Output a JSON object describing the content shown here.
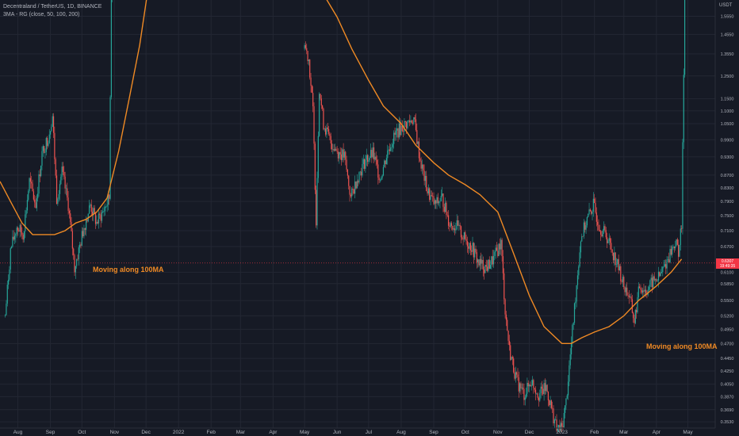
{
  "header": {
    "symbol_line": "Decentraland / TetherUS, 1D, BINANCE",
    "indicator_line": "3MA - RG (close, 50, 100, 200)"
  },
  "annotations": {
    "left": "Moving along 100MA",
    "right": "Moving along 100MA"
  },
  "price_axis": {
    "currency": "USDT",
    "labels": [
      "1.5550",
      "1.4550",
      "1.3550",
      "1.2500",
      "1.1500",
      "1.1000",
      "1.0500",
      "0.9900",
      "0.9300",
      "0.8700",
      "0.8300",
      "0.7900",
      "0.7500",
      "0.7100",
      "0.6700",
      "0.6100",
      "0.5850",
      "0.5500",
      "0.5200",
      "0.4950",
      "0.4700",
      "0.4450",
      "0.4250",
      "0.4050",
      "0.3870",
      "0.3690",
      "0.3530"
    ],
    "current_price": "0.6307",
    "countdown": "19:49:35"
  },
  "colors": {
    "background": "#161a25",
    "up_candle": "#26a69a",
    "down_candle": "#ef5350",
    "moving_average": "#f08a24",
    "price_tag": "#f23645",
    "axis_text": "#b2b5be",
    "grid": "#232733"
  },
  "chart_data": {
    "type": "line",
    "title": "Decentraland / TetherUS, 1D, BINANCE",
    "xlabel": "",
    "ylabel": "",
    "x_tick_labels": [
      "Aug",
      "Sep",
      "Oct",
      "Nov",
      "Dec",
      "2022",
      "Feb",
      "Mar",
      "Apr",
      "May",
      "Jun",
      "Jul",
      "Aug",
      "Sep",
      "Oct",
      "Nov",
      "Dec",
      "2023",
      "Feb",
      "Mar",
      "Apr",
      "May"
    ],
    "y_tick_labels": [
      "1.5550",
      "1.4550",
      "1.3550",
      "1.2500",
      "1.1500",
      "1.1000",
      "1.0500",
      "0.9900",
      "0.9300",
      "0.8700",
      "0.8300",
      "0.7900",
      "0.7500",
      "0.7100",
      "0.6700",
      "0.6100",
      "0.5850",
      "0.5500",
      "0.5200",
      "0.4950",
      "0.4700",
      "0.4450",
      "0.4250",
      "0.4050",
      "0.3870",
      "0.3690",
      "0.3530"
    ],
    "scale": "log",
    "ylim": [
      0.345,
      1.65
    ],
    "grid": true,
    "series": [
      {
        "kind": "price",
        "points": [
          [
            "2021-07-20",
            0.52
          ],
          [
            "2021-07-25",
            0.66
          ],
          [
            "2021-07-31",
            0.72
          ],
          [
            "2021-08-06",
            0.7
          ],
          [
            "2021-08-12",
            0.85
          ],
          [
            "2021-08-18",
            0.78
          ],
          [
            "2021-08-24",
            0.94
          ],
          [
            "2021-08-30",
            1.0
          ],
          [
            "2021-09-03",
            1.08
          ],
          [
            "2021-09-07",
            0.8
          ],
          [
            "2021-09-12",
            0.88
          ],
          [
            "2021-09-18",
            0.78
          ],
          [
            "2021-09-24",
            0.62
          ],
          [
            "2021-09-28",
            0.66
          ],
          [
            "2021-10-03",
            0.72
          ],
          [
            "2021-10-09",
            0.78
          ],
          [
            "2021-10-15",
            0.73
          ],
          [
            "2021-10-21",
            0.76
          ],
          [
            "2021-10-27",
            0.8
          ],
          [
            "2021-10-29",
            1.7
          ],
          [
            "2021-10-31",
            1.7
          ],
          [
            "2022-04-30",
            1.7
          ],
          [
            "2022-05-01",
            1.4
          ],
          [
            "2022-05-05",
            1.33
          ],
          [
            "2022-05-09",
            1.1
          ],
          [
            "2022-05-12",
            0.74
          ],
          [
            "2022-05-15",
            1.2
          ],
          [
            "2022-05-19",
            1.05
          ],
          [
            "2022-05-26",
            0.98
          ],
          [
            "2022-06-01",
            0.95
          ],
          [
            "2022-06-08",
            0.93
          ],
          [
            "2022-06-14",
            0.8
          ],
          [
            "2022-06-20",
            0.86
          ],
          [
            "2022-06-28",
            0.92
          ],
          [
            "2022-07-05",
            0.94
          ],
          [
            "2022-07-12",
            0.86
          ],
          [
            "2022-07-20",
            0.96
          ],
          [
            "2022-07-28",
            1.02
          ],
          [
            "2022-08-06",
            1.05
          ],
          [
            "2022-08-13",
            1.07
          ],
          [
            "2022-08-19",
            0.92
          ],
          [
            "2022-08-26",
            0.82
          ],
          [
            "2022-09-02",
            0.78
          ],
          [
            "2022-09-09",
            0.8
          ],
          [
            "2022-09-16",
            0.73
          ],
          [
            "2022-09-23",
            0.72
          ],
          [
            "2022-09-30",
            0.69
          ],
          [
            "2022-10-07",
            0.67
          ],
          [
            "2022-10-14",
            0.63
          ],
          [
            "2022-10-21",
            0.62
          ],
          [
            "2022-10-28",
            0.64
          ],
          [
            "2022-11-04",
            0.68
          ],
          [
            "2022-11-08",
            0.53
          ],
          [
            "2022-11-12",
            0.46
          ],
          [
            "2022-11-19",
            0.41
          ],
          [
            "2022-11-26",
            0.39
          ],
          [
            "2022-12-03",
            0.41
          ],
          [
            "2022-12-10",
            0.39
          ],
          [
            "2022-12-17",
            0.4
          ],
          [
            "2022-12-24",
            0.36
          ],
          [
            "2022-12-27",
            0.343
          ],
          [
            "2023-01-01",
            0.345
          ],
          [
            "2023-01-05",
            0.38
          ],
          [
            "2023-01-09",
            0.45
          ],
          [
            "2023-01-14",
            0.56
          ],
          [
            "2023-01-19",
            0.69
          ],
          [
            "2023-01-25",
            0.74
          ],
          [
            "2023-01-31",
            0.78
          ],
          [
            "2023-02-06",
            0.72
          ],
          [
            "2023-02-12",
            0.7
          ],
          [
            "2023-02-18",
            0.66
          ],
          [
            "2023-02-24",
            0.62
          ],
          [
            "2023-03-01",
            0.58
          ],
          [
            "2023-03-06",
            0.56
          ],
          [
            "2023-03-11",
            0.51
          ],
          [
            "2023-03-16",
            0.58
          ],
          [
            "2023-03-22",
            0.57
          ],
          [
            "2023-03-29",
            0.59
          ],
          [
            "2023-04-04",
            0.6
          ],
          [
            "2023-04-10",
            0.63
          ],
          [
            "2023-04-15",
            0.66
          ],
          [
            "2023-04-19",
            0.68
          ],
          [
            "2023-04-22",
            0.66
          ],
          [
            "2023-04-25",
            0.72
          ],
          [
            "2023-04-28",
            1.7
          ]
        ]
      },
      {
        "kind": "moving_average",
        "points": [
          [
            "2021-07-15",
            0.85
          ],
          [
            "2021-07-25",
            0.79
          ],
          [
            "2021-08-05",
            0.73
          ],
          [
            "2021-08-15",
            0.7
          ],
          [
            "2021-08-25",
            0.7
          ],
          [
            "2021-09-05",
            0.7
          ],
          [
            "2021-09-15",
            0.71
          ],
          [
            "2021-09-25",
            0.73
          ],
          [
            "2021-10-05",
            0.74
          ],
          [
            "2021-10-15",
            0.76
          ],
          [
            "2021-10-25",
            0.8
          ],
          [
            "2021-11-05",
            0.95
          ],
          [
            "2021-11-15",
            1.15
          ],
          [
            "2021-11-25",
            1.4
          ],
          [
            "2021-12-02",
            1.7
          ],
          [
            "2022-05-20",
            1.7
          ],
          [
            "2022-06-01",
            1.55
          ],
          [
            "2022-06-15",
            1.38
          ],
          [
            "2022-07-01",
            1.23
          ],
          [
            "2022-07-15",
            1.12
          ],
          [
            "2022-08-01",
            1.05
          ],
          [
            "2022-08-15",
            0.97
          ],
          [
            "2022-09-01",
            0.91
          ],
          [
            "2022-09-15",
            0.87
          ],
          [
            "2022-10-01",
            0.84
          ],
          [
            "2022-10-15",
            0.81
          ],
          [
            "2022-11-01",
            0.76
          ],
          [
            "2022-11-15",
            0.66
          ],
          [
            "2022-12-01",
            0.56
          ],
          [
            "2022-12-15",
            0.5
          ],
          [
            "2023-01-01",
            0.47
          ],
          [
            "2023-01-10",
            0.47
          ],
          [
            "2023-01-20",
            0.48
          ],
          [
            "2023-02-01",
            0.49
          ],
          [
            "2023-02-15",
            0.5
          ],
          [
            "2023-03-01",
            0.52
          ],
          [
            "2023-03-15",
            0.55
          ],
          [
            "2023-04-01",
            0.58
          ],
          [
            "2023-04-15",
            0.61
          ],
          [
            "2023-04-25",
            0.64
          ]
        ]
      }
    ]
  }
}
